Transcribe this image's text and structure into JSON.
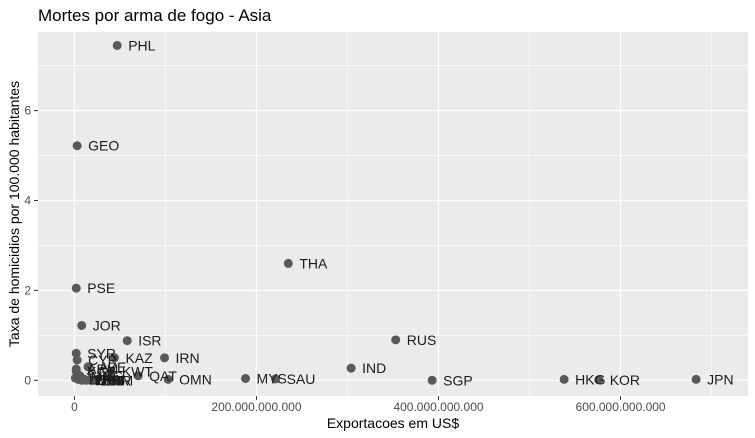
{
  "chart_data": {
    "type": "scatter",
    "title": "Mortes por arma de fogo - Asia",
    "xlabel": "Exportacoes em US$",
    "ylabel": "Taxa de homicidios por 100.000 habitantes",
    "xlim": [
      -40000000000,
      740000000000
    ],
    "ylim": [
      -0.35,
      7.75
    ],
    "x_ticks": [
      0,
      200000000000,
      400000000000,
      600000000000
    ],
    "x_tick_labels": [
      "0",
      "200.000.000.000",
      "400.000.000.000",
      "600.000.000.000"
    ],
    "y_ticks": [
      0,
      2,
      4,
      6
    ],
    "y_tick_labels": [
      "0",
      "2",
      "4",
      "6"
    ],
    "grid": true,
    "background": "#ebebeb",
    "grid_color": "#ffffff",
    "point_color": "#595959",
    "points": [
      {
        "label": "PHL",
        "x": 47000000000,
        "y": 7.45
      },
      {
        "label": "GEO",
        "x": 3000000000,
        "y": 5.22
      },
      {
        "label": "THA",
        "x": 235000000000,
        "y": 2.6
      },
      {
        "label": "PSE",
        "x": 2000000000,
        "y": 2.05
      },
      {
        "label": "JOR",
        "x": 8000000000,
        "y": 1.22
      },
      {
        "label": "RUS",
        "x": 353000000000,
        "y": 0.9
      },
      {
        "label": "ISR",
        "x": 58000000000,
        "y": 0.88
      },
      {
        "label": "SYR",
        "x": 2000000000,
        "y": 0.6
      },
      {
        "label": "KAZ",
        "x": 44000000000,
        "y": 0.5
      },
      {
        "label": "IRN",
        "x": 99000000000,
        "y": 0.5
      },
      {
        "label": "IND",
        "x": 304000000000,
        "y": 0.27
      },
      {
        "label": "KWT",
        "x": 40000000000,
        "y": 0.2
      },
      {
        "label": "QAT",
        "x": 70000000000,
        "y": 0.1
      },
      {
        "label": "MYS",
        "x": 188000000000,
        "y": 0.04
      },
      {
        "label": "SAU",
        "x": 221000000000,
        "y": 0.03
      },
      {
        "label": "OMN",
        "x": 103000000000,
        "y": 0.02
      },
      {
        "label": "SGP",
        "x": 393000000000,
        "y": 0.0
      },
      {
        "label": "HKG",
        "x": 538000000000,
        "y": 0.02
      },
      {
        "label": "KOR",
        "x": 576000000000,
        "y": 0.01
      },
      {
        "label": "JPN",
        "x": 683000000000,
        "y": 0.02
      },
      {
        "label": "CYP",
        "x": 3000000000,
        "y": 0.45
      },
      {
        "label": "ARM",
        "x": 2000000000,
        "y": 0.25
      },
      {
        "label": "AZE",
        "x": 15000000000,
        "y": 0.3
      },
      {
        "label": "KGZ",
        "x": 2000000000,
        "y": 0.2
      },
      {
        "label": "TJK",
        "x": 1000000000,
        "y": 0.05
      },
      {
        "label": "MNG",
        "x": 6000000000,
        "y": 0.1
      },
      {
        "label": "LBN",
        "x": 4000000000,
        "y": 0.02
      },
      {
        "label": "BHR",
        "x": 18000000000,
        "y": 0.0
      },
      {
        "label": "YEM",
        "x": 8000000000,
        "y": 0.0
      },
      {
        "label": "LKA",
        "x": 11000000000,
        "y": 0.02
      },
      {
        "label": "UZB",
        "x": 13000000000,
        "y": 0.0
      },
      {
        "label": "TKM",
        "x": 20000000000,
        "y": 0.0
      },
      {
        "label": "BRN",
        "x": 10000000000,
        "y": 0.01
      }
    ]
  }
}
